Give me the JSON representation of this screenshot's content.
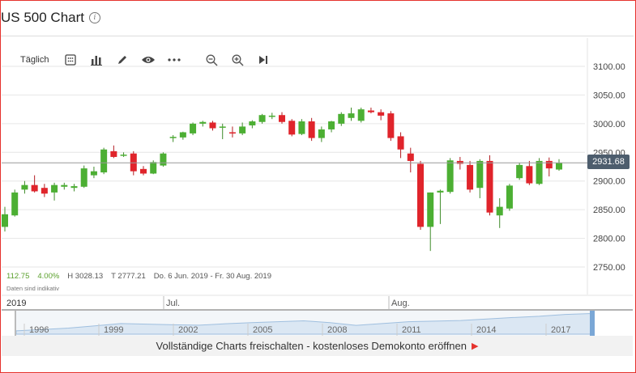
{
  "header": {
    "title": "US 500 Chart"
  },
  "toolbar": {
    "interval_label": "Täglich",
    "icons": [
      "calendar-icon",
      "bar-chart-icon",
      "pencil-icon",
      "eye-icon",
      "more-icon",
      "zoom-out-icon",
      "zoom-in-icon",
      "skip-end-icon"
    ]
  },
  "stats": {
    "change": "112.75",
    "change_pct": "4.00%",
    "high": "H 3028.13",
    "low": "T 2777.21",
    "range": "Do. 6 Jun. 2019 - Fr. 30 Aug. 2019"
  },
  "indicative_note": "Daten sind indikativ",
  "current_price": "2931.68",
  "time_axis": {
    "year": "2019",
    "month_labels": [
      "Jul.",
      "Aug."
    ]
  },
  "navigator_years": [
    "1996",
    "1999",
    "2002",
    "2005",
    "2008",
    "2011",
    "2014",
    "2017"
  ],
  "banner": {
    "text": "Vollständige Charts freischalten - kostenloses Demokonto eröffnen"
  },
  "colors": {
    "up": "#4caf33",
    "down": "#e0242b",
    "accent": "#e5322d",
    "price_tag": "#4d5d6d"
  },
  "chart_data": {
    "type": "candlestick",
    "ylim": [
      2725,
      3125
    ],
    "y_ticks": [
      2750,
      2800,
      2850,
      2900,
      2950,
      3000,
      3050,
      3100
    ],
    "last_price": 2931.68,
    "candles": [
      {
        "o": 2820,
        "h": 2855,
        "l": 2812,
        "c": 2842
      },
      {
        "o": 2840,
        "h": 2885,
        "l": 2838,
        "c": 2880
      },
      {
        "o": 2885,
        "h": 2900,
        "l": 2878,
        "c": 2893
      },
      {
        "o": 2893,
        "h": 2910,
        "l": 2880,
        "c": 2882
      },
      {
        "o": 2888,
        "h": 2895,
        "l": 2872,
        "c": 2878
      },
      {
        "o": 2880,
        "h": 2897,
        "l": 2866,
        "c": 2893
      },
      {
        "o": 2890,
        "h": 2897,
        "l": 2885,
        "c": 2893
      },
      {
        "o": 2888,
        "h": 2895,
        "l": 2882,
        "c": 2891
      },
      {
        "o": 2890,
        "h": 2927,
        "l": 2888,
        "c": 2922
      },
      {
        "o": 2910,
        "h": 2925,
        "l": 2905,
        "c": 2917
      },
      {
        "o": 2915,
        "h": 2958,
        "l": 2912,
        "c": 2955
      },
      {
        "o": 2952,
        "h": 2962,
        "l": 2940,
        "c": 2942
      },
      {
        "o": 2945,
        "h": 2950,
        "l": 2942,
        "c": 2946
      },
      {
        "o": 2948,
        "h": 2952,
        "l": 2910,
        "c": 2917
      },
      {
        "o": 2921,
        "h": 2926,
        "l": 2910,
        "c": 2913
      },
      {
        "o": 2913,
        "h": 2936,
        "l": 2912,
        "c": 2933
      },
      {
        "o": 2927,
        "h": 2950,
        "l": 2925,
        "c": 2948
      },
      {
        "o": 2975,
        "h": 2980,
        "l": 2968,
        "c": 2977
      },
      {
        "o": 2976,
        "h": 2986,
        "l": 2972,
        "c": 2985
      },
      {
        "o": 2983,
        "h": 3002,
        "l": 2980,
        "c": 3000
      },
      {
        "o": 3000,
        "h": 3005,
        "l": 2995,
        "c": 3003
      },
      {
        "o": 3002,
        "h": 3005,
        "l": 2988,
        "c": 2992
      },
      {
        "o": 2995,
        "h": 3000,
        "l": 2973,
        "c": 2995
      },
      {
        "o": 2985,
        "h": 2995,
        "l": 2976,
        "c": 2983
      },
      {
        "o": 2983,
        "h": 3002,
        "l": 2980,
        "c": 2995
      },
      {
        "o": 2997,
        "h": 3006,
        "l": 2992,
        "c": 3004
      },
      {
        "o": 3003,
        "h": 3017,
        "l": 3000,
        "c": 3015
      },
      {
        "o": 3012,
        "h": 3019,
        "l": 3008,
        "c": 3014
      },
      {
        "o": 3015,
        "h": 3020,
        "l": 3000,
        "c": 3003
      },
      {
        "o": 3005,
        "h": 3008,
        "l": 2978,
        "c": 2981
      },
      {
        "o": 2982,
        "h": 3008,
        "l": 2980,
        "c": 3004
      },
      {
        "o": 3004,
        "h": 3010,
        "l": 2970,
        "c": 2975
      },
      {
        "o": 2975,
        "h": 2995,
        "l": 2968,
        "c": 2990
      },
      {
        "o": 2990,
        "h": 3005,
        "l": 2985,
        "c": 3004
      },
      {
        "o": 3000,
        "h": 3020,
        "l": 2996,
        "c": 3017
      },
      {
        "o": 3010,
        "h": 3028,
        "l": 3005,
        "c": 3018
      },
      {
        "o": 3005,
        "h": 3028,
        "l": 3002,
        "c": 3025
      },
      {
        "o": 3023,
        "h": 3028,
        "l": 3018,
        "c": 3020
      },
      {
        "o": 3020,
        "h": 3025,
        "l": 3006,
        "c": 3014
      },
      {
        "o": 3018,
        "h": 3022,
        "l": 2970,
        "c": 2975
      },
      {
        "o": 2978,
        "h": 2985,
        "l": 2940,
        "c": 2955
      },
      {
        "o": 2948,
        "h": 2958,
        "l": 2915,
        "c": 2935
      },
      {
        "o": 2930,
        "h": 2935,
        "l": 2815,
        "c": 2820
      },
      {
        "o": 2820,
        "h": 2880,
        "l": 2778,
        "c": 2880
      },
      {
        "o": 2880,
        "h": 2885,
        "l": 2825,
        "c": 2883
      },
      {
        "o": 2881,
        "h": 2940,
        "l": 2878,
        "c": 2936
      },
      {
        "o": 2935,
        "h": 2942,
        "l": 2920,
        "c": 2930
      },
      {
        "o": 2928,
        "h": 2935,
        "l": 2880,
        "c": 2885
      },
      {
        "o": 2888,
        "h": 2938,
        "l": 2870,
        "c": 2935
      },
      {
        "o": 2935,
        "h": 2945,
        "l": 2840,
        "c": 2845
      },
      {
        "o": 2840,
        "h": 2870,
        "l": 2818,
        "c": 2855
      },
      {
        "o": 2852,
        "h": 2895,
        "l": 2848,
        "c": 2892
      },
      {
        "o": 2905,
        "h": 2932,
        "l": 2902,
        "c": 2928
      },
      {
        "o": 2926,
        "h": 2935,
        "l": 2893,
        "c": 2896
      },
      {
        "o": 2895,
        "h": 2940,
        "l": 2893,
        "c": 2935
      },
      {
        "o": 2935,
        "h": 2941,
        "l": 2908,
        "c": 2922
      },
      {
        "o": 2920,
        "h": 2938,
        "l": 2918,
        "c": 2932
      }
    ]
  }
}
